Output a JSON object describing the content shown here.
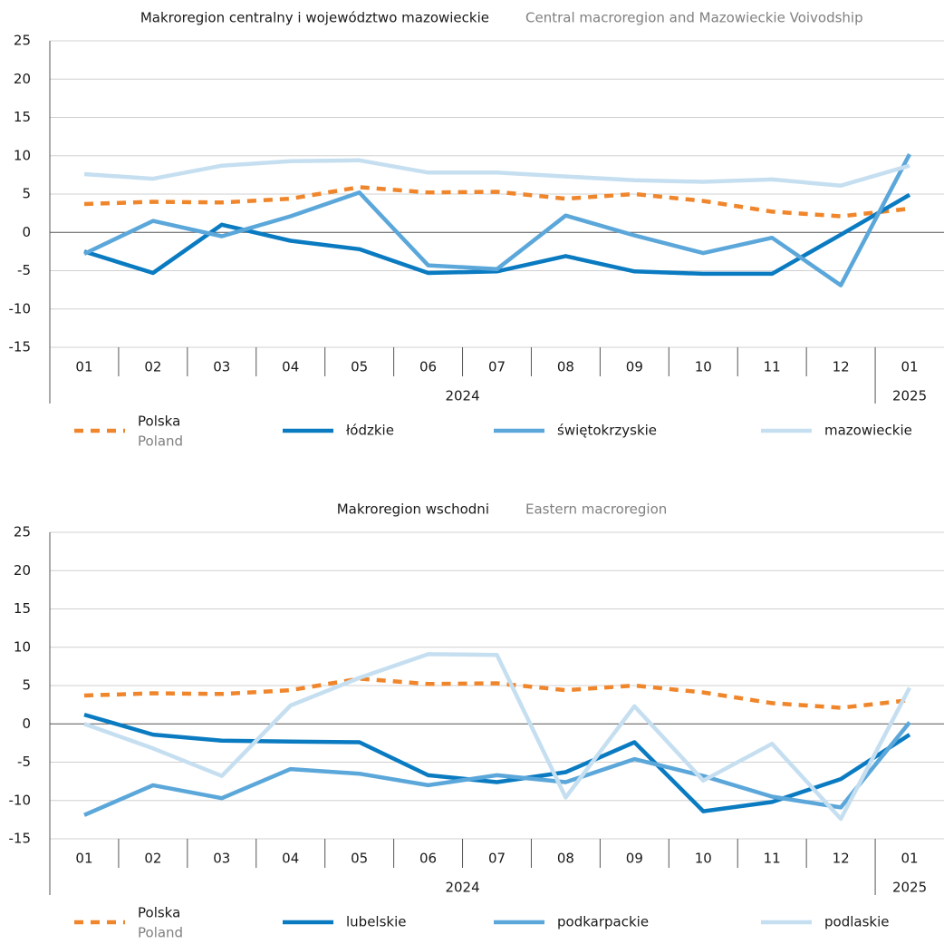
{
  "chart_data": [
    {
      "type": "line",
      "title": "Makroregion centralny i województwo mazowieckie",
      "subtitle": "Central macroregion and Mazowieckie Voivodship",
      "categories": [
        "01",
        "02",
        "03",
        "04",
        "05",
        "06",
        "07",
        "08",
        "09",
        "10",
        "11",
        "12",
        "01"
      ],
      "years": [
        "2024",
        "2025"
      ],
      "ylim": [
        -15,
        25
      ],
      "yticks": [
        -15,
        -10,
        -5,
        0,
        5,
        10,
        15,
        20,
        25
      ],
      "grid": true,
      "series": [
        {
          "name": "Polska",
          "name_en": "Poland",
          "color": "#f0862c",
          "dash": true,
          "values": [
            3.7,
            4.0,
            3.9,
            4.4,
            5.9,
            5.2,
            5.3,
            4.4,
            5.0,
            4.1,
            2.7,
            2.1,
            3.1
          ]
        },
        {
          "name": "łódzkie",
          "color": "#0a7bc1",
          "values": [
            -2.5,
            -5.3,
            1.0,
            -1.1,
            -2.2,
            -5.3,
            -5.1,
            -3.1,
            -5.1,
            -5.4,
            -5.4,
            -0.3,
            4.9
          ]
        },
        {
          "name": "świętokrzyskie",
          "color": "#5ba7da",
          "values": [
            -2.8,
            1.5,
            -0.5,
            2.1,
            5.2,
            -4.3,
            -4.8,
            2.2,
            -0.4,
            -2.7,
            -0.7,
            -6.9,
            10.2
          ]
        },
        {
          "name": "mazowieckie",
          "color": "#c5dff1",
          "values": [
            7.6,
            7.0,
            8.7,
            9.3,
            9.4,
            7.8,
            7.8,
            7.3,
            6.8,
            6.6,
            6.9,
            6.1,
            8.7
          ]
        }
      ]
    },
    {
      "type": "line",
      "title": "Makroregion wschodni",
      "subtitle": "Eastern macroregion",
      "categories": [
        "01",
        "02",
        "03",
        "04",
        "05",
        "06",
        "07",
        "08",
        "09",
        "10",
        "11",
        "12",
        "01"
      ],
      "years": [
        "2024",
        "2025"
      ],
      "ylim": [
        -15,
        25
      ],
      "yticks": [
        -15,
        -10,
        -5,
        0,
        5,
        10,
        15,
        20,
        25
      ],
      "grid": true,
      "series": [
        {
          "name": "Polska",
          "name_en": "Poland",
          "color": "#f0862c",
          "dash": true,
          "values": [
            3.7,
            4.0,
            3.9,
            4.4,
            5.9,
            5.2,
            5.3,
            4.4,
            5.0,
            4.1,
            2.7,
            2.1,
            3.1
          ]
        },
        {
          "name": "lubelskie",
          "color": "#0a7bc1",
          "values": [
            1.2,
            -1.4,
            -2.2,
            -2.3,
            -2.4,
            -6.7,
            -7.6,
            -6.3,
            -2.4,
            -11.4,
            -10.2,
            -7.2,
            -1.4
          ]
        },
        {
          "name": "podkarpackie",
          "color": "#5ba7da",
          "values": [
            -11.9,
            -8.0,
            -9.7,
            -5.9,
            -6.5,
            -8.0,
            -6.7,
            -7.6,
            -4.6,
            -6.8,
            -9.5,
            -10.9,
            0.2
          ]
        },
        {
          "name": "podlaskie",
          "color": "#c5dff1",
          "values": [
            0.0,
            -3.2,
            -6.8,
            2.4,
            6.0,
            9.1,
            9.0,
            -9.6,
            2.3,
            -7.4,
            -2.6,
            -12.4,
            4.7
          ]
        }
      ]
    }
  ]
}
